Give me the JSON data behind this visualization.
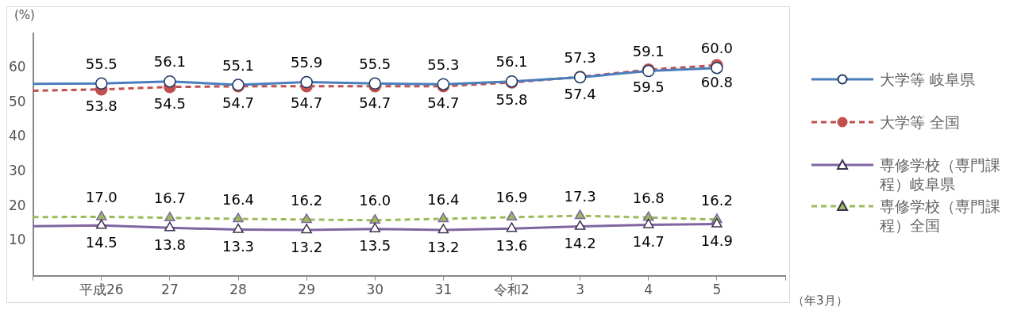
{
  "chart_data": {
    "type": "line",
    "ylabel": "(%)",
    "xlabel": "（年3月）",
    "categories": [
      null,
      "平成26",
      "27",
      "28",
      "29",
      "30",
      "31",
      "令和2",
      "3",
      "4",
      "5",
      null
    ],
    "ylim": [
      0,
      70
    ],
    "yticks": [
      10,
      20,
      30,
      40,
      50,
      60
    ],
    "legend": "right",
    "series": [
      {
        "name": "大学等 岐阜県",
        "color": "#4a7ebb",
        "marker": "circle",
        "line_style": "solid",
        "values": [
          55.4,
          55.5,
          56.1,
          55.1,
          55.9,
          55.5,
          55.3,
          56.1,
          57.3,
          59.1,
          60.0,
          null
        ],
        "value_labels": [
          null,
          "55.5",
          "56.1",
          "55.1",
          "55.9",
          "55.5",
          "55.3",
          "56.1",
          "57.3",
          "59.1",
          "60.0",
          null
        ]
      },
      {
        "name": "大学等 全国",
        "color": "#c0504d",
        "marker": "circle",
        "line_style": "dashed",
        "values": [
          53.4,
          53.8,
          54.5,
          54.7,
          54.7,
          54.7,
          54.7,
          55.8,
          57.4,
          59.5,
          60.8,
          null
        ],
        "value_labels": [
          null,
          "53.8",
          "54.5",
          "54.7",
          "54.7",
          "54.7",
          "54.7",
          "55.8",
          "57.4",
          "59.5",
          "60.8",
          null
        ]
      },
      {
        "name": "専修学校（専門課程）岐阜県",
        "color": "#8064a2",
        "marker": "triangle",
        "line_style": "solid",
        "values": [
          14.3,
          14.5,
          13.8,
          13.3,
          13.2,
          13.5,
          13.2,
          13.6,
          14.2,
          14.7,
          14.9,
          null
        ],
        "value_labels": [
          null,
          "14.5",
          "13.8",
          "13.3",
          "13.2",
          "13.5",
          "13.2",
          "13.6",
          "14.2",
          "14.7",
          "14.9",
          null
        ]
      },
      {
        "name": "専修学校（専門課程）全国",
        "color": "#9bbb59",
        "marker": "triangle",
        "line_style": "dashed",
        "values": [
          16.9,
          17.0,
          16.7,
          16.4,
          16.2,
          16.0,
          16.4,
          16.9,
          17.3,
          16.8,
          16.2,
          null
        ],
        "value_labels": [
          null,
          "17.0",
          "16.7",
          "16.4",
          "16.2",
          "16.0",
          "16.4",
          "16.9",
          "17.3",
          "16.8",
          "16.2",
          null
        ]
      }
    ]
  }
}
